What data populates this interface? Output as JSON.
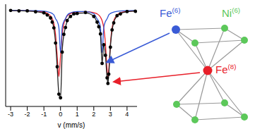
{
  "chart_data": {
    "type": "line",
    "xlabel": "v (mm/s)",
    "tick_labels": "x",
    "xlim": [
      -3.3,
      4.6
    ],
    "xticks": [
      -3,
      -2,
      -1,
      0,
      1,
      2,
      3,
      4
    ],
    "ylim": [
      0.2,
      1.05
    ],
    "x": [
      -3,
      -2.5,
      -2,
      -1.5,
      -1,
      -0.8,
      -0.6,
      -0.5,
      -0.4,
      -0.3,
      -0.2,
      -0.1,
      0,
      0.1,
      0.2,
      0.3,
      0.4,
      0.6,
      0.8,
      1,
      1.5,
      2,
      2.2,
      2.3,
      2.4,
      2.5,
      2.6,
      2.7,
      2.8,
      2.85,
      2.9,
      3,
      3.1,
      3.2,
      3.4,
      3.6,
      4,
      4.5
    ],
    "series": [
      {
        "color": "#e8202a",
        "marker": "none",
        "line_style": "solid",
        "values": [
          0.998,
          0.998,
          0.996,
          0.993,
          0.984,
          0.975,
          0.953,
          0.931,
          0.889,
          0.801,
          0.618,
          0.449,
          0.618,
          0.801,
          0.888,
          0.93,
          0.952,
          0.973,
          0.981,
          0.986,
          0.989,
          0.98,
          0.97,
          0.96,
          0.943,
          0.913,
          0.853,
          0.723,
          0.503,
          0.45,
          0.503,
          0.723,
          0.853,
          0.913,
          0.961,
          0.978,
          0.99,
          0.995
        ]
      },
      {
        "color": "#2f55d4",
        "marker": "none",
        "line_style": "solid",
        "values": [
          0.999,
          0.998,
          0.997,
          0.996,
          0.992,
          0.988,
          0.98,
          0.973,
          0.961,
          0.93,
          0.907,
          0.857,
          0.65,
          0.857,
          0.907,
          0.93,
          0.959,
          0.978,
          0.986,
          0.989,
          0.989,
          0.971,
          0.928,
          0.906,
          0.856,
          0.649,
          0.856,
          0.906,
          0.93,
          0.945,
          0.961,
          0.973,
          0.98,
          0.985,
          0.991,
          0.994,
          0.997,
          0.998
        ]
      },
      {
        "color": "#222222",
        "marker": "none",
        "line_style": "solid",
        "values": [
          0.997,
          0.996,
          0.993,
          0.989,
          0.976,
          0.963,
          0.933,
          0.904,
          0.85,
          0.731,
          0.525,
          0.306,
          0.268,
          0.658,
          0.795,
          0.86,
          0.911,
          0.951,
          0.967,
          0.975,
          0.978,
          0.951,
          0.898,
          0.866,
          0.799,
          0.562,
          0.709,
          0.629,
          0.433,
          0.395,
          0.464,
          0.696,
          0.833,
          0.898,
          0.952,
          0.972,
          0.987,
          0.993
        ]
      },
      {
        "color": "#000000",
        "marker": "circle",
        "line_style": "none",
        "values": [
          0.998,
          0.994,
          0.995,
          0.987,
          0.978,
          0.96,
          0.936,
          0.901,
          0.853,
          0.727,
          0.53,
          0.302,
          0.272,
          0.652,
          0.799,
          0.856,
          0.914,
          0.948,
          0.97,
          0.973,
          0.981,
          0.948,
          0.901,
          0.862,
          0.803,
          0.558,
          0.713,
          0.625,
          0.437,
          0.391,
          0.468,
          0.692,
          0.836,
          0.895,
          0.955,
          0.969,
          0.989,
          0.991
        ]
      }
    ],
    "annotations": [
      "Fe(6)",
      "Ni(6)",
      "Fe(8)"
    ]
  }
}
